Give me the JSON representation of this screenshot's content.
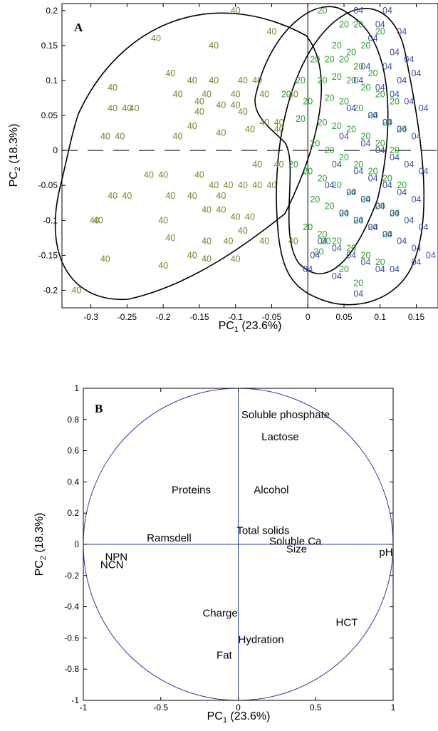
{
  "chart_data": [
    {
      "type": "scatter",
      "panel_label": "A",
      "xlabel": "PC",
      "xlabel_sub": "1",
      "xlabel_rest": " (23.6%)",
      "ylabel": "PC",
      "ylabel_sub": "2",
      "ylabel_rest": " (18.3%)",
      "xlim": [
        -0.34,
        0.18
      ],
      "ylim": [
        -0.225,
        0.21
      ],
      "xticks": [
        -0.3,
        -0.25,
        -0.2,
        -0.15,
        -0.1,
        -0.05,
        0,
        0.05,
        0.1,
        0.15
      ],
      "xtick_labels": [
        "-0.3",
        "-0.25",
        "-0.2",
        "-0.15",
        "-0.1",
        "-0.05",
        "0",
        "0.05",
        "0.1",
        "0.15"
      ],
      "yticks": [
        0.2,
        0.15,
        0.1,
        0.05,
        0,
        -0.05,
        -0.1,
        -0.15,
        -0.2
      ],
      "ytick_labels": [
        "0.2",
        "0.15",
        "0.1",
        "0.05",
        "0",
        "-0.05",
        "-0.1",
        "-0.15",
        "-0.2"
      ],
      "colors": {
        "40": "#7f7f2a",
        "20": "#2ca02c",
        "04": "#3a4fa8"
      },
      "series": [
        {
          "name": "40",
          "points": [
            [
              -0.1,
              0.2
            ],
            [
              -0.05,
              0.17
            ],
            [
              -0.21,
              0.16
            ],
            [
              -0.13,
              0.15
            ],
            [
              -0.27,
              0.09
            ],
            [
              -0.19,
              0.11
            ],
            [
              -0.16,
              0.1
            ],
            [
              -0.13,
              0.1
            ],
            [
              -0.09,
              0.1
            ],
            [
              -0.07,
              0.1
            ],
            [
              -0.18,
              0.08
            ],
            [
              -0.14,
              0.08
            ],
            [
              -0.1,
              0.08
            ],
            [
              -0.06,
              0.08
            ],
            [
              -0.02,
              0.08
            ],
            [
              -0.27,
              0.06
            ],
            [
              -0.24,
              0.06
            ],
            [
              -0.15,
              0.07
            ],
            [
              -0.12,
              0.065
            ],
            [
              -0.1,
              0.065
            ],
            [
              -0.15,
              0.055
            ],
            [
              -0.09,
              0.055
            ],
            [
              -0.25,
              0.06
            ],
            [
              -0.06,
              0.04
            ],
            [
              -0.04,
              0.04
            ],
            [
              -0.28,
              0.02
            ],
            [
              -0.26,
              0.02
            ],
            [
              -0.18,
              0.02
            ],
            [
              -0.16,
              0.035
            ],
            [
              -0.12,
              0.025
            ],
            [
              -0.08,
              0.03
            ],
            [
              -0.04,
              0.03
            ],
            [
              -0.22,
              -0.035
            ],
            [
              -0.2,
              -0.035
            ],
            [
              -0.15,
              -0.035
            ],
            [
              -0.13,
              -0.05
            ],
            [
              -0.11,
              -0.05
            ],
            [
              -0.09,
              -0.05
            ],
            [
              -0.07,
              -0.02
            ],
            [
              -0.04,
              -0.02
            ],
            [
              -0.07,
              -0.05
            ],
            [
              -0.05,
              -0.05
            ],
            [
              -0.27,
              -0.065
            ],
            [
              -0.25,
              -0.065
            ],
            [
              -0.19,
              -0.065
            ],
            [
              -0.16,
              -0.065
            ],
            [
              -0.12,
              -0.065
            ],
            [
              -0.295,
              -0.1
            ],
            [
              -0.29,
              -0.1
            ],
            [
              -0.2,
              -0.1
            ],
            [
              -0.14,
              -0.085
            ],
            [
              -0.12,
              -0.085
            ],
            [
              -0.1,
              -0.095
            ],
            [
              -0.08,
              -0.095
            ],
            [
              -0.19,
              -0.125
            ],
            [
              -0.14,
              -0.13
            ],
            [
              -0.11,
              -0.13
            ],
            [
              -0.09,
              -0.115
            ],
            [
              -0.06,
              -0.13
            ],
            [
              -0.28,
              -0.155
            ],
            [
              -0.2,
              -0.165
            ],
            [
              -0.16,
              -0.15
            ],
            [
              -0.14,
              -0.155
            ],
            [
              -0.1,
              -0.155
            ],
            [
              -0.32,
              -0.2
            ],
            [
              -0.02,
              -0.13
            ]
          ]
        },
        {
          "name": "20",
          "points": [
            [
              0.02,
              0.2
            ],
            [
              0.05,
              0.18
            ],
            [
              0.07,
              0.18
            ],
            [
              0.1,
              0.17
            ],
            [
              0.04,
              0.15
            ],
            [
              0.06,
              0.14
            ],
            [
              0.08,
              0.15
            ],
            [
              0.01,
              0.13
            ],
            [
              0.03,
              0.13
            ],
            [
              0.05,
              0.13
            ],
            [
              0.07,
              0.12
            ],
            [
              0.09,
              0.11
            ],
            [
              -0.01,
              0.1
            ],
            [
              0.02,
              0.1
            ],
            [
              0.04,
              0.105
            ],
            [
              0.06,
              0.1
            ],
            [
              0.08,
              0.09
            ],
            [
              0.1,
              0.08
            ],
            [
              0.12,
              0.07
            ],
            [
              -0.03,
              0.08
            ],
            [
              0.0,
              0.07
            ],
            [
              0.03,
              0.075
            ],
            [
              0.05,
              0.07
            ],
            [
              0.07,
              0.06
            ],
            [
              0.09,
              0.05
            ],
            [
              0.11,
              0.04
            ],
            [
              0.13,
              0.03
            ],
            [
              -0.01,
              0.045
            ],
            [
              0.02,
              0.04
            ],
            [
              0.04,
              0.035
            ],
            [
              0.06,
              0.03
            ],
            [
              0.08,
              0.02
            ],
            [
              0.1,
              0.01
            ],
            [
              0.12,
              0.0
            ],
            [
              0.01,
              0.01
            ],
            [
              0.03,
              0.0
            ],
            [
              0.05,
              -0.01
            ],
            [
              0.07,
              -0.02
            ],
            [
              0.09,
              -0.03
            ],
            [
              0.11,
              -0.04
            ],
            [
              0.13,
              -0.05
            ],
            [
              -0.02,
              -0.02
            ],
            [
              0.0,
              -0.03
            ],
            [
              0.02,
              -0.04
            ],
            [
              0.04,
              -0.05
            ],
            [
              0.06,
              -0.06
            ],
            [
              0.08,
              -0.07
            ],
            [
              0.1,
              -0.08
            ],
            [
              0.12,
              -0.09
            ],
            [
              0.01,
              -0.07
            ],
            [
              0.03,
              -0.08
            ],
            [
              0.05,
              -0.09
            ],
            [
              0.07,
              -0.1
            ],
            [
              0.09,
              -0.11
            ],
            [
              0.11,
              -0.12
            ],
            [
              0.0,
              -0.11
            ],
            [
              0.02,
              -0.12
            ],
            [
              0.04,
              -0.13
            ],
            [
              0.06,
              -0.14
            ],
            [
              0.08,
              -0.15
            ],
            [
              0.1,
              -0.16
            ],
            [
              0.05,
              -0.17
            ],
            [
              0.07,
              -0.19
            ],
            [
              0.025,
              -0.13
            ],
            [
              0.015,
              -0.145
            ]
          ]
        },
        {
          "name": "04",
          "points": [
            [
              0.07,
              0.2
            ],
            [
              0.11,
              0.2
            ],
            [
              0.1,
              0.18
            ],
            [
              0.13,
              0.17
            ],
            [
              0.09,
              0.16
            ],
            [
              0.12,
              0.14
            ],
            [
              0.14,
              0.13
            ],
            [
              0.08,
              0.12
            ],
            [
              0.11,
              0.12
            ],
            [
              0.13,
              0.1
            ],
            [
              0.15,
              0.11
            ],
            [
              0.07,
              0.1
            ],
            [
              0.1,
              0.09
            ],
            [
              0.12,
              0.08
            ],
            [
              0.14,
              0.07
            ],
            [
              0.16,
              0.06
            ],
            [
              0.06,
              0.06
            ],
            [
              0.09,
              0.05
            ],
            [
              0.11,
              0.04
            ],
            [
              0.13,
              0.03
            ],
            [
              0.15,
              0.02
            ],
            [
              0.05,
              0.02
            ],
            [
              0.08,
              0.01
            ],
            [
              0.1,
              0.0
            ],
            [
              0.12,
              -0.01
            ],
            [
              0.14,
              -0.02
            ],
            [
              0.16,
              -0.03
            ],
            [
              0.04,
              -0.02
            ],
            [
              0.07,
              -0.03
            ],
            [
              0.09,
              -0.04
            ],
            [
              0.11,
              -0.05
            ],
            [
              0.13,
              -0.06
            ],
            [
              0.15,
              -0.07
            ],
            [
              0.03,
              -0.05
            ],
            [
              0.06,
              -0.06
            ],
            [
              0.08,
              -0.07
            ],
            [
              0.1,
              -0.08
            ],
            [
              0.12,
              -0.09
            ],
            [
              0.14,
              -0.1
            ],
            [
              0.16,
              -0.11
            ],
            [
              0.05,
              -0.09
            ],
            [
              0.07,
              -0.1
            ],
            [
              0.09,
              -0.11
            ],
            [
              0.11,
              -0.12
            ],
            [
              0.13,
              -0.13
            ],
            [
              0.15,
              -0.14
            ],
            [
              0.17,
              -0.15
            ],
            [
              0.02,
              -0.13
            ],
            [
              0.04,
              -0.14
            ],
            [
              0.06,
              -0.15
            ],
            [
              0.08,
              -0.16
            ],
            [
              0.1,
              -0.17
            ],
            [
              0.12,
              -0.17
            ],
            [
              0.15,
              -0.16
            ],
            [
              0.0,
              -0.17
            ],
            [
              0.04,
              -0.18
            ],
            [
              0.07,
              -0.205
            ],
            [
              0.01,
              -0.15
            ]
          ]
        }
      ],
      "cluster_outlines": [
        "40",
        "20",
        "04"
      ]
    },
    {
      "type": "scatter",
      "panel_label": "B",
      "xlabel": "PC",
      "xlabel_sub": "1",
      "xlabel_rest": " (23.6%)",
      "ylabel": "PC",
      "ylabel_sub": "2",
      "ylabel_rest": " (18.3%)",
      "xlim": [
        -1,
        1
      ],
      "ylim": [
        -1,
        1
      ],
      "xticks": [
        -1,
        -0.5,
        0,
        0.5,
        1
      ],
      "xtick_labels": [
        "-1",
        "-0.5",
        "0",
        "0.5",
        "1"
      ],
      "yticks": [
        1,
        0.8,
        0.6,
        0.4,
        0.2,
        0,
        -0.2,
        -0.4,
        -0.6,
        -0.8,
        -1
      ],
      "ytick_labels": [
        "1",
        "0.8",
        "0.6",
        "0.4",
        "0.2",
        "0",
        "-0.2",
        "-0.4",
        "-0.6",
        "-0.8",
        "-1"
      ],
      "circle_color": "#2b3f9e",
      "variables": [
        {
          "label": "Soluble phosphate",
          "x": 0.02,
          "y": 0.83
        },
        {
          "label": "Lactose",
          "x": 0.15,
          "y": 0.69
        },
        {
          "label": "Proteins",
          "x": -0.43,
          "y": 0.35
        },
        {
          "label": "Alcohol",
          "x": 0.1,
          "y": 0.35
        },
        {
          "label": "Total solids",
          "x": -0.01,
          "y": 0.09
        },
        {
          "label": "Ramsdell",
          "x": -0.59,
          "y": 0.04
        },
        {
          "label": "Soluble Ca",
          "x": 0.2,
          "y": 0.02
        },
        {
          "label": "Size",
          "x": 0.31,
          "y": -0.03
        },
        {
          "label": "pH",
          "x": 0.91,
          "y": -0.05
        },
        {
          "label": "NPN",
          "x": -0.86,
          "y": -0.08
        },
        {
          "label": "NCN",
          "x": -0.89,
          "y": -0.13
        },
        {
          "label": "Charge",
          "x": -0.23,
          "y": -0.44
        },
        {
          "label": "HCT",
          "x": 0.63,
          "y": -0.5
        },
        {
          "label": "Hydration",
          "x": 0.0,
          "y": -0.61
        },
        {
          "label": "Fat",
          "x": -0.14,
          "y": -0.71
        }
      ]
    }
  ]
}
